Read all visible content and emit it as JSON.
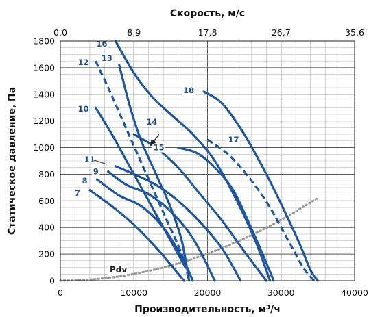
{
  "chart_data": {
    "type": "line",
    "xlabel": "Производительность, м³/ч",
    "ylabel": "Статическое давление, Па",
    "x2label": "Скорость, м/с",
    "xlim": [
      0,
      40000
    ],
    "ylim": [
      0,
      1800
    ],
    "x_ticks": [
      "0",
      "10000",
      "20000",
      "30000",
      "40000"
    ],
    "y_ticks": [
      "0",
      "200",
      "400",
      "600",
      "800",
      "1000",
      "1200",
      "1400",
      "1600",
      "1800"
    ],
    "x2_ticks": [
      "0,0",
      "8,9",
      "17,8",
      "26,7",
      "35,6"
    ],
    "grid": true,
    "colors": {
      "curve": "#1f56a0",
      "pdv": "#9a9a9a",
      "grid_major": "#555555",
      "grid_minor": "#bbbbbb",
      "label": "#1f4e8c"
    },
    "series": [
      {
        "name": "7",
        "style": "solid",
        "x": [
          4000,
          7000,
          10000,
          13000,
          15000,
          16800
        ],
        "y": [
          680,
          560,
          420,
          250,
          120,
          0
        ]
      },
      {
        "name": "8",
        "style": "solid",
        "x": [
          5000,
          8000,
          11000,
          14000,
          16500,
          18000
        ],
        "y": [
          760,
          640,
          560,
          400,
          180,
          0
        ]
      },
      {
        "name": "9",
        "style": "solid",
        "x": [
          6500,
          9000,
          12000,
          15000,
          18000,
          21000
        ],
        "y": [
          820,
          720,
          650,
          520,
          320,
          0
        ]
      },
      {
        "name": "10",
        "style": "solid",
        "x": [
          4800,
          7000,
          9000,
          11000,
          13000,
          15000,
          17000
        ],
        "y": [
          1300,
          1100,
          900,
          700,
          500,
          300,
          100
        ]
      },
      {
        "name": "11",
        "style": "solid",
        "x": [
          7500,
          10000,
          13000,
          16000,
          19000,
          22000,
          24500
        ],
        "y": [
          860,
          800,
          720,
          600,
          440,
          240,
          0
        ]
      },
      {
        "name": "12",
        "style": "dashed",
        "x": [
          4800,
          6500,
          8500,
          10500,
          12500,
          14500,
          16500,
          17500
        ],
        "y": [
          1650,
          1450,
          1200,
          950,
          700,
          450,
          200,
          0
        ]
      },
      {
        "name": "13",
        "style": "solid",
        "x": [
          8000,
          9500,
          11000,
          13000,
          15000,
          16500,
          17500
        ],
        "y": [
          1620,
          1300,
          1050,
          800,
          550,
          300,
          0
        ]
      },
      {
        "name": "14",
        "style": "solid",
        "x": [
          10000,
          13000,
          16000,
          19000,
          22000,
          25000,
          28000
        ],
        "y": [
          1100,
          1000,
          850,
          650,
          450,
          220,
          0
        ]
      },
      {
        "name": "15",
        "style": "solid",
        "x": [
          16000,
          18500,
          21000,
          23500,
          25500,
          27500,
          29000
        ],
        "y": [
          1000,
          960,
          850,
          680,
          450,
          200,
          0
        ]
      },
      {
        "name": "16",
        "style": "solid",
        "x": [
          7500,
          10000,
          12500,
          15000,
          18000,
          21000,
          24000,
          26500,
          28500
        ],
        "y": [
          1800,
          1560,
          1380,
          1250,
          1100,
          900,
          600,
          300,
          0
        ]
      },
      {
        "name": "17",
        "style": "dashed",
        "x": [
          20000,
          23000,
          26000,
          28500,
          31000,
          33000,
          34500
        ],
        "y": [
          1060,
          940,
          750,
          550,
          300,
          100,
          0
        ]
      },
      {
        "name": "18",
        "style": "solid",
        "x": [
          19500,
          22000,
          25000,
          28000,
          30500,
          32500,
          34000,
          35000
        ],
        "y": [
          1420,
          1330,
          1100,
          800,
          520,
          280,
          80,
          0
        ]
      },
      {
        "name": "Pdv",
        "style": "dotted",
        "x": [
          0,
          5000,
          10000,
          15000,
          20000,
          25000,
          30000,
          35000
        ],
        "y": [
          0,
          13,
          51,
          114,
          203,
          317,
          457,
          622
        ]
      }
    ]
  }
}
